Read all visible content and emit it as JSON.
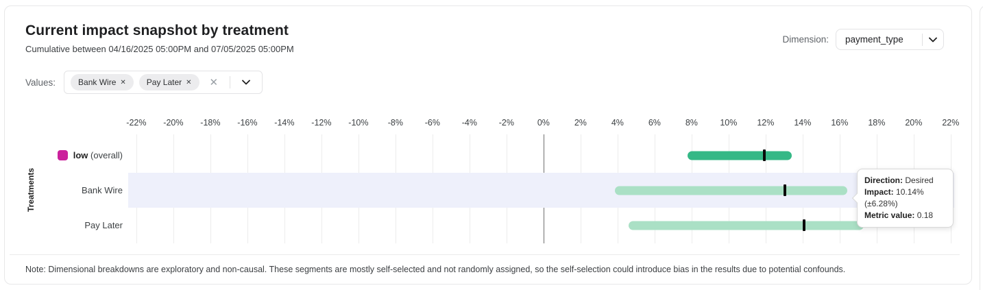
{
  "card": {
    "title": "Current impact snapshot by treatment",
    "subtitle": "Cumulative between 04/16/2025 05:00PM and 07/05/2025 05:00PM",
    "note": "Note: Dimensional breakdowns are exploratory and non-causal. These segments are mostly self-selected and not randomly assigned, so the self-selection could introduce bias in the results due to potential confounds."
  },
  "dimension": {
    "label": "Dimension:",
    "selected_value": "payment_type"
  },
  "values_filter": {
    "label": "Values:",
    "chips": [
      {
        "label": "Bank Wire",
        "remove_icon": "✕"
      },
      {
        "label": "Pay Later",
        "remove_icon": "✕"
      }
    ],
    "clear_icon": "✕"
  },
  "tooltip": {
    "direction_label": "Direction:",
    "direction_value": "Desired",
    "impact_label": "Impact:",
    "impact_value": "10.14% (±6.28%)",
    "metric_label": "Metric value:",
    "metric_value": "0.18"
  },
  "chart_data": {
    "type": "range_bar",
    "orientation": "horizontal",
    "title": "Current impact snapshot by treatment",
    "ylabel": "Treatments",
    "unit": "%",
    "axis": {
      "min": -22.44,
      "max": 22.19,
      "tick_step": 2,
      "ticks": [
        -22,
        -20,
        -18,
        -16,
        -14,
        -12,
        -10,
        -8,
        -6,
        -4,
        -2,
        0,
        2,
        4,
        6,
        8,
        10,
        12,
        14,
        16,
        18,
        20,
        22
      ]
    },
    "zero_line": 0,
    "grid": true,
    "rows": [
      {
        "label": "low",
        "label_suffix": " (overall)",
        "swatch_color": "#cb219c",
        "impact": 10.6,
        "low": 7.8,
        "high": 13.4,
        "bar_color": "#35b886",
        "highlighted": false
      },
      {
        "label": "Bank Wire",
        "label_suffix": "",
        "swatch_color": "",
        "impact": 10.14,
        "low": 3.86,
        "high": 16.42,
        "bar_color": "#aae0c5",
        "highlighted": true
      },
      {
        "label": "Pay Later",
        "label_suffix": "",
        "swatch_color": "",
        "impact": 10.9,
        "low": 4.6,
        "high": 17.3,
        "bar_color": "#aae0c5",
        "highlighted": false
      }
    ],
    "colors": {
      "overall_bar": "#35b886",
      "segment_bar": "#aae0c5",
      "marker": "#0b0b0b",
      "highlight_row": "#eef0fb",
      "zero_line": "#6f6f6f",
      "gridline": "#ececec"
    }
  }
}
